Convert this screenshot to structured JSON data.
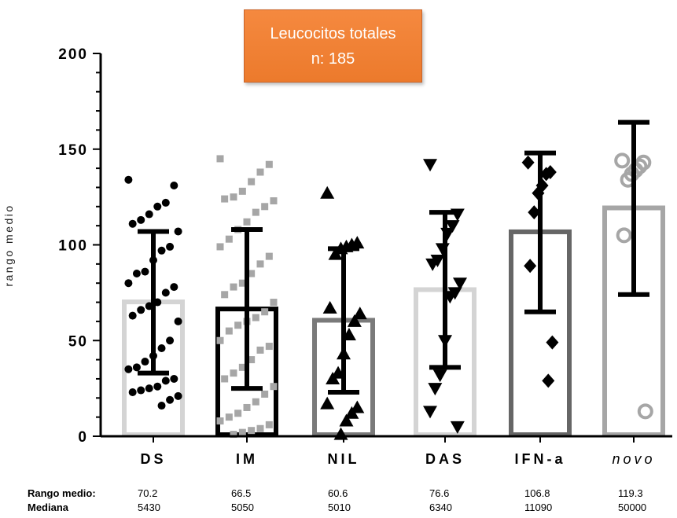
{
  "chart_data": {
    "type": "bar",
    "title": "Leucocitos totales",
    "subtitle": "n: 185",
    "ylabel": "rango medio",
    "xlabel": "",
    "ylim": [
      0,
      200
    ],
    "yticks": [
      0,
      50,
      100,
      150,
      200
    ],
    "categories": [
      "DS",
      "IM",
      "NIL",
      "DAS",
      "IFN-a",
      "novo"
    ],
    "values": [
      70.2,
      66.5,
      60.6,
      76.6,
      106.8,
      119.3
    ],
    "medians": [
      5430,
      5050,
      5010,
      6340,
      11090,
      50000
    ],
    "error_bars": [
      {
        "low": 33,
        "high": 107
      },
      {
        "low": 25,
        "high": 108
      },
      {
        "low": 23,
        "high": 98
      },
      {
        "low": 36,
        "high": 117
      },
      {
        "low": 65,
        "high": 148
      },
      {
        "low": 74,
        "high": 164
      }
    ],
    "bar_colors": [
      "#d4d4d4",
      "#000000",
      "#7a7a7a",
      "#d4d4d4",
      "#666666",
      "#a6a6a6"
    ],
    "marker_colors": [
      "#000000",
      "#a6a6a6",
      "#000000",
      "#000000",
      "#000000",
      "#a6a6a6"
    ],
    "markers": [
      "circle",
      "square",
      "triangle-up",
      "triangle-down",
      "diamond",
      "circle-open"
    ],
    "points": [
      [
        134,
        131,
        122,
        120,
        116,
        113,
        111,
        107,
        99,
        97,
        92,
        86,
        85,
        80,
        78,
        75,
        70,
        68,
        66,
        63,
        60,
        50,
        46,
        42,
        39,
        36,
        35,
        30,
        29,
        26,
        25,
        24,
        23,
        21,
        19,
        16
      ],
      [
        145,
        142,
        138,
        133,
        128,
        125,
        124,
        123,
        120,
        117,
        112,
        108,
        103,
        99,
        94,
        90,
        85,
        80,
        78,
        74,
        70,
        65,
        62,
        60,
        58,
        55,
        50,
        47,
        45,
        40,
        36,
        33,
        30,
        26,
        22,
        18,
        15,
        12,
        10,
        8,
        6,
        4,
        3,
        2,
        1
      ],
      [
        127,
        101,
        100,
        99,
        98,
        95,
        67,
        64,
        60,
        53,
        43,
        33,
        30,
        17,
        15,
        12,
        8,
        1
      ],
      [
        142,
        116,
        110,
        106,
        98,
        92,
        90,
        80,
        75,
        73,
        50,
        32,
        25,
        13,
        5
      ],
      [
        143,
        138,
        137,
        131,
        127,
        117,
        89,
        49,
        29
      ],
      [
        144,
        143,
        141,
        139,
        137,
        134,
        105,
        13
      ]
    ],
    "row_labels": [
      "Rango medio",
      "Mediana"
    ]
  }
}
